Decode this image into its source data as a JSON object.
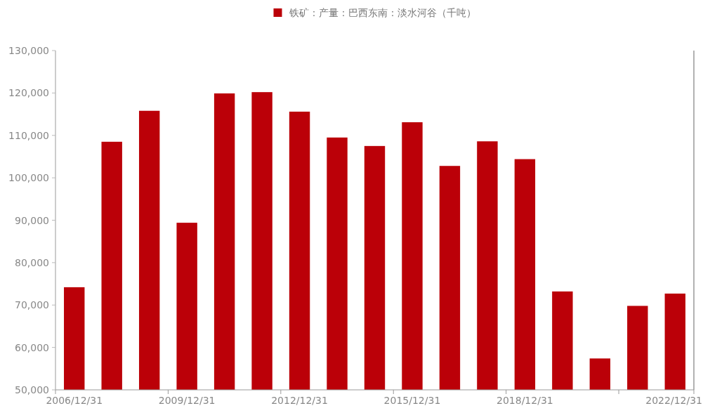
{
  "chart_data": {
    "type": "bar",
    "categories": [
      "2006/12/31",
      null,
      null,
      "2009/12/31",
      null,
      null,
      "2012/12/31",
      null,
      null,
      "2015/12/31",
      null,
      null,
      "2018/12/31",
      null,
      null,
      null,
      "2022/12/31"
    ],
    "series": [
      {
        "name": "铁矿：产量：巴西东南：淡水河谷（千吨）",
        "color": "#bb0008",
        "values": [
          74200,
          108500,
          115800,
          89400,
          119900,
          120200,
          115600,
          109500,
          107500,
          113100,
          102800,
          108600,
          104400,
          73200,
          57400,
          69800,
          72700
        ]
      }
    ],
    "ylim": [
      50000,
      130000
    ],
    "yticks": [
      {
        "value": 50000,
        "label": "50,000"
      },
      {
        "value": 60000,
        "label": "60,000"
      },
      {
        "value": 70000,
        "label": "70,000"
      },
      {
        "value": 80000,
        "label": "80,000"
      },
      {
        "value": 90000,
        "label": "90,000"
      },
      {
        "value": 100000,
        "label": "100,000"
      },
      {
        "value": 110000,
        "label": "110,000"
      },
      {
        "value": 120000,
        "label": "120,000"
      },
      {
        "value": 130000,
        "label": "130,000"
      }
    ],
    "legend": "top",
    "grid": false
  }
}
